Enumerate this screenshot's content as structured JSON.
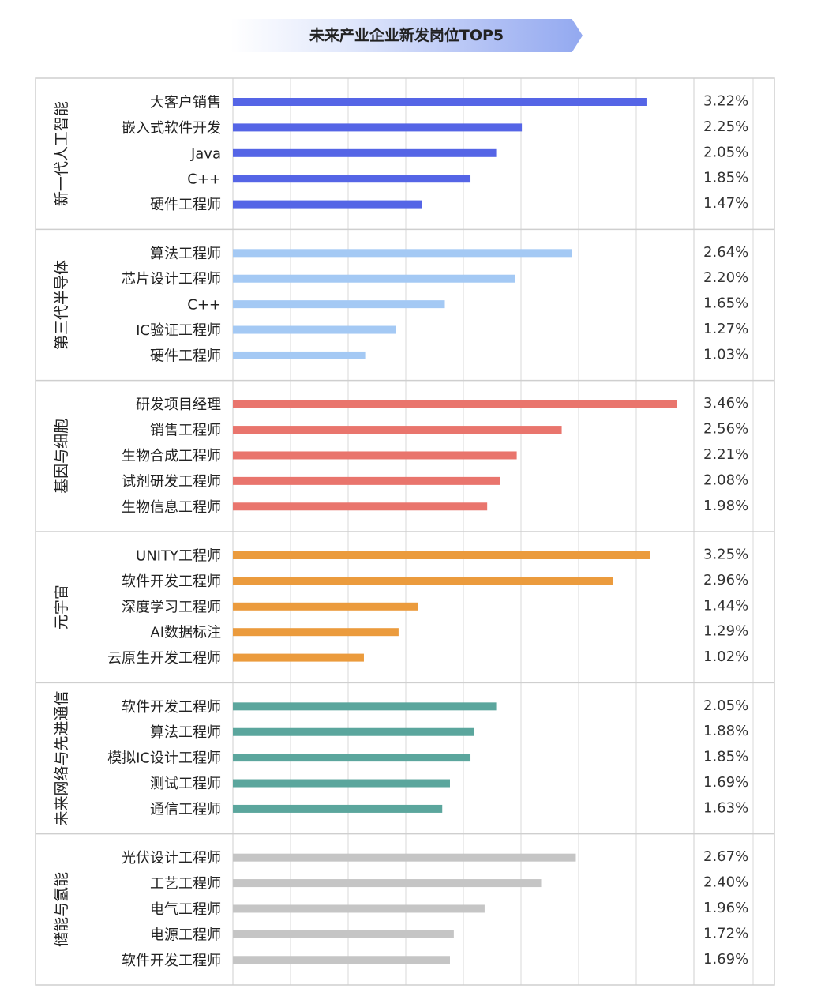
{
  "chart_data": {
    "type": "bar",
    "title": "未来产业企业新发岗位TOP5",
    "orientation": "horizontal",
    "grid": true,
    "value_format": "percent",
    "groups": [
      {
        "name": "新一代人工智能",
        "color": "#5565e6",
        "categories": [
          "大客户销售",
          "嵌入式软件开发",
          "Java",
          "C++",
          "硬件工程师"
        ],
        "values": [
          3.22,
          2.25,
          2.05,
          1.85,
          1.47
        ],
        "labels": [
          "3.22%",
          "2.25%",
          "2.05%",
          "1.85%",
          "1.47%"
        ]
      },
      {
        "name": "第三代半导体",
        "color": "#a4c9f4",
        "categories": [
          "算法工程师",
          "芯片设计工程师",
          "C++",
          "IC验证工程师",
          "硬件工程师"
        ],
        "values": [
          2.64,
          2.2,
          1.65,
          1.27,
          1.03
        ],
        "labels": [
          "2.64%",
          "2.20%",
          "1.65%",
          "1.27%",
          "1.03%"
        ]
      },
      {
        "name": "基因与细胞",
        "color": "#e9756d",
        "categories": [
          "研发项目经理",
          "销售工程师",
          "生物合成工程师",
          "试剂研发工程师",
          "生物信息工程师"
        ],
        "values": [
          3.46,
          2.56,
          2.21,
          2.08,
          1.98
        ],
        "labels": [
          "3.46%",
          "2.56%",
          "2.21%",
          "2.08%",
          "1.98%"
        ]
      },
      {
        "name": "元宇宙",
        "color": "#eb9b3d",
        "categories": [
          "UNITY工程师",
          "软件开发工程师",
          "深度学习工程师",
          "AI数据标注",
          "云原生开发工程师"
        ],
        "values": [
          3.25,
          2.96,
          1.44,
          1.29,
          1.02
        ],
        "labels": [
          "3.25%",
          "2.96%",
          "1.44%",
          "1.29%",
          "1.02%"
        ]
      },
      {
        "name": "未来网络与先进通信",
        "color": "#5ba69d",
        "categories": [
          "软件开发工程师",
          "算法工程师",
          "模拟IC设计工程师",
          "测试工程师",
          "通信工程师"
        ],
        "values": [
          2.05,
          1.88,
          1.85,
          1.69,
          1.63
        ],
        "labels": [
          "2.05%",
          "1.88%",
          "1.85%",
          "1.69%",
          "1.63%"
        ]
      },
      {
        "name": "储能与氢能",
        "color": "#c5c5c5",
        "categories": [
          "光伏设计工程师",
          "工艺工程师",
          "电气工程师",
          "电源工程师",
          "软件开发工程师"
        ],
        "values": [
          2.67,
          2.4,
          1.96,
          1.72,
          1.69
        ],
        "labels": [
          "2.67%",
          "2.40%",
          "1.96%",
          "1.72%",
          "1.69%"
        ]
      }
    ]
  }
}
